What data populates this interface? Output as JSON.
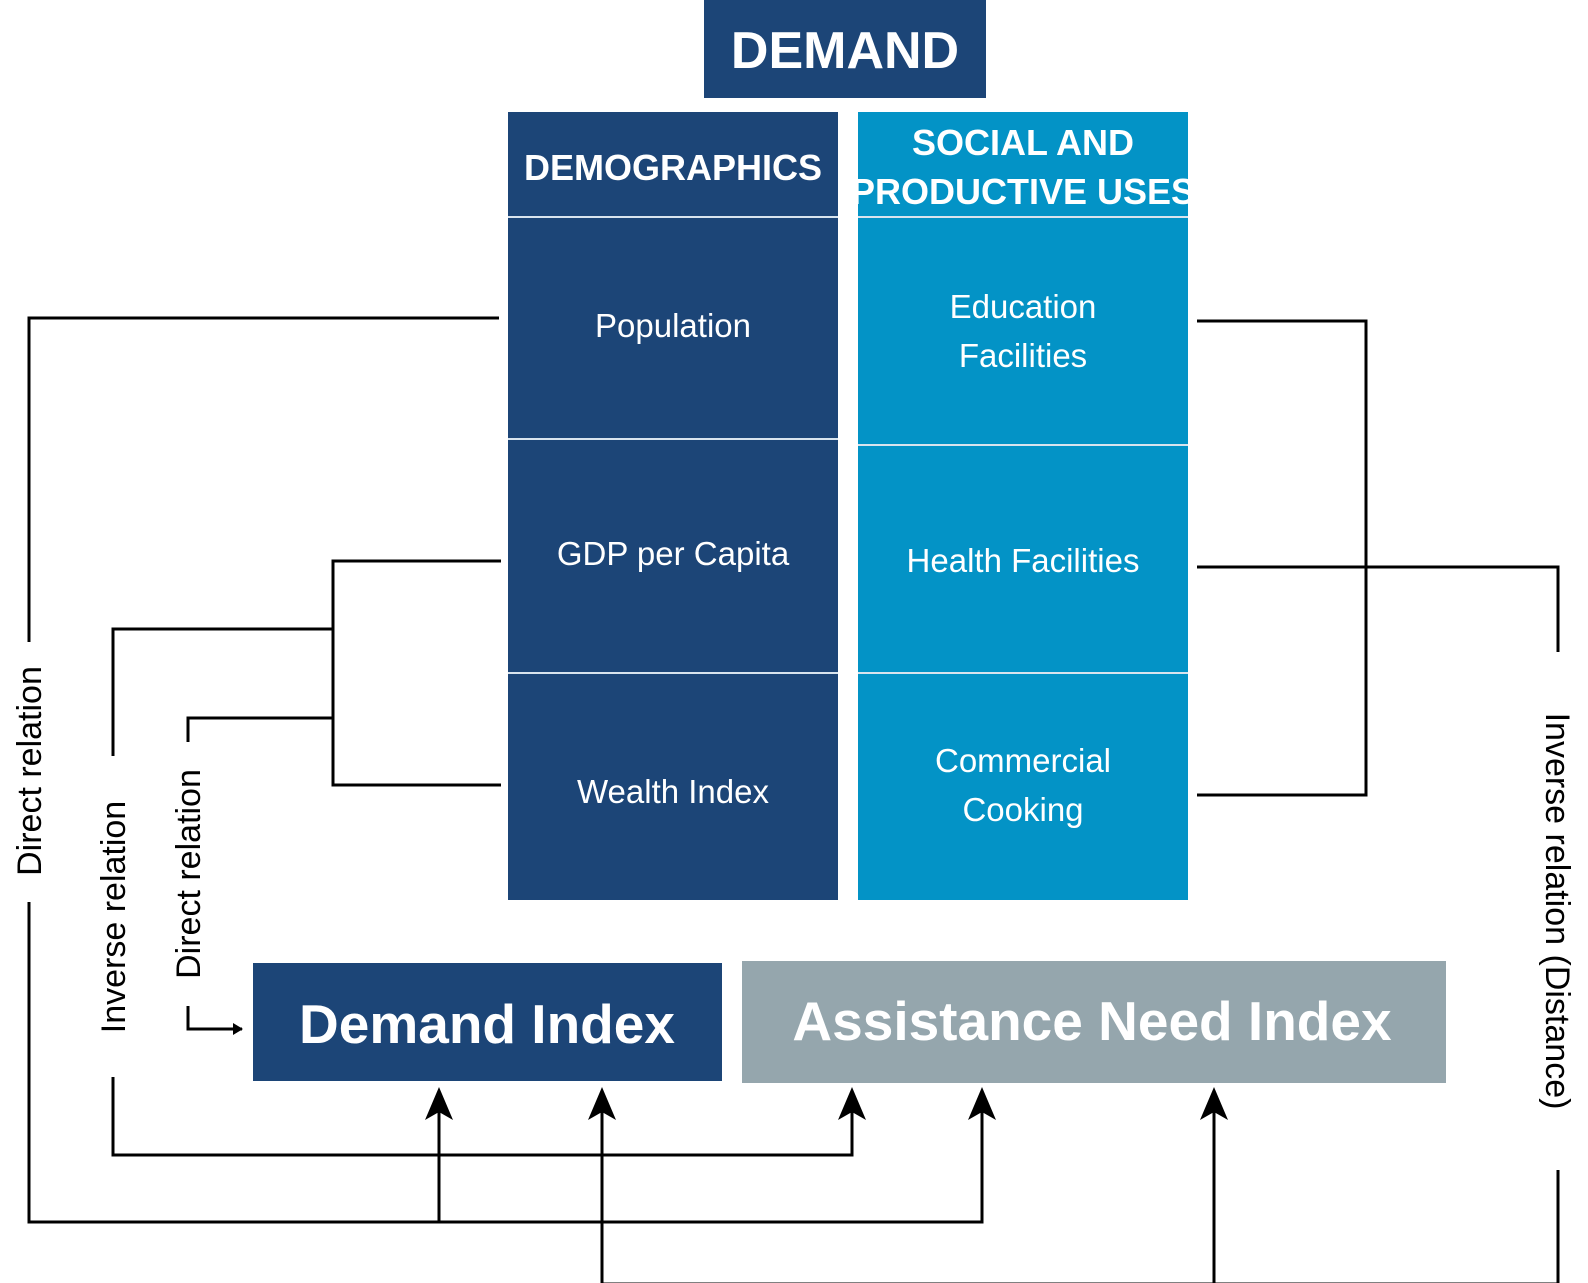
{
  "title": "DEMAND",
  "demographics": {
    "header": "DEMOGRAPHICS",
    "items": [
      "Population",
      "GDP per Capita",
      "Wealth Index"
    ]
  },
  "social": {
    "header_lines": [
      "SOCIAL AND",
      "PRODUCTIVE USES"
    ],
    "items": [
      [
        "Education",
        "Facilities"
      ],
      [
        "Health Facilities"
      ],
      [
        "Commercial",
        "Cooking"
      ]
    ]
  },
  "indices": {
    "demand": "Demand Index",
    "assistance": "Assistance Need Index"
  },
  "relations": {
    "left_outer": "Direct relation",
    "left_middle": "Inverse relation",
    "left_inner": "Direct relation",
    "right": "Inverse relation (Distance)"
  },
  "colors": {
    "dark_blue": "#1c4577",
    "light_blue": "#0393c6",
    "grey": "#95a6ad",
    "divider": "#d9e4ee",
    "arrow": "#000000"
  }
}
